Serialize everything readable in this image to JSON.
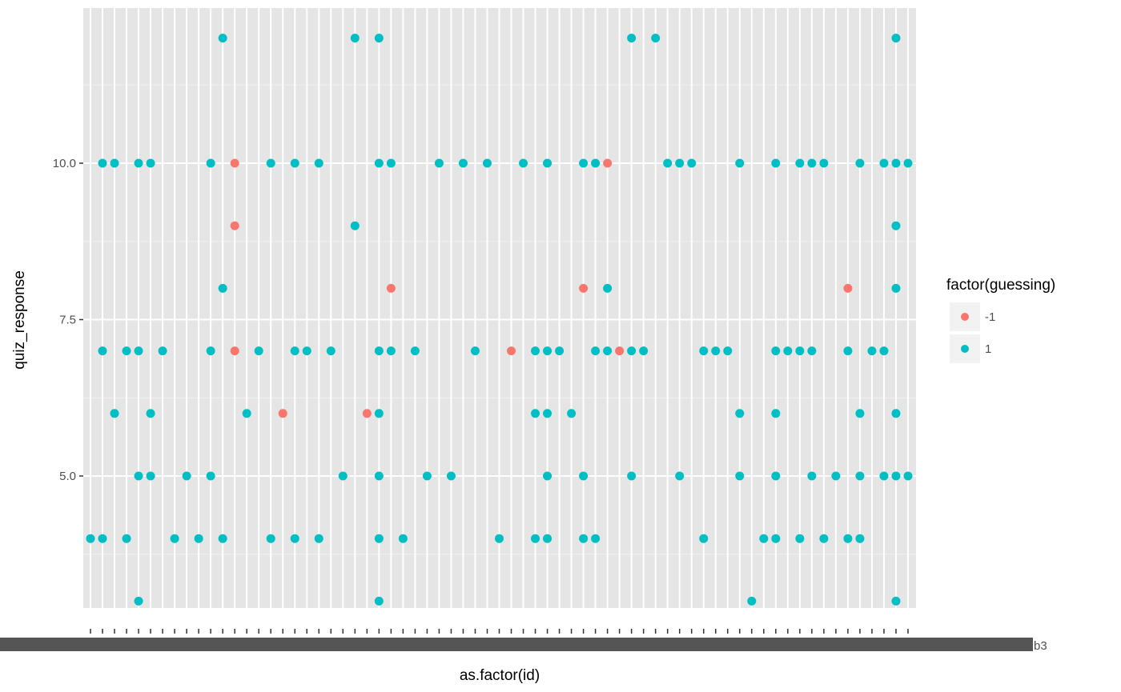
{
  "chart_data": {
    "type": "scatter",
    "xlabel": "as.factor(id)",
    "ylabel": "quiz_response",
    "ylim": [
      2.7,
      12.6
    ],
    "yticks": [
      5.0,
      7.5,
      10.0
    ],
    "ytick_labels": [
      "5.0",
      "7.5",
      "10.0"
    ],
    "x_categories_count": 68,
    "x_tick_labels_note": "68 overlapping category labels, illegible except trailing fragment",
    "x_tick_labels_visible": [
      "b3"
    ],
    "grid": true,
    "background": "#e5e5e5",
    "legend": {
      "title": "factor(guessing)",
      "placement": "right",
      "entries": [
        {
          "label": "-1",
          "color": "#f8766d"
        },
        {
          "label": "1",
          "color": "#00bfc4"
        }
      ]
    },
    "series": [
      {
        "name": "-1",
        "color": "#f8766d",
        "points": [
          [
            13,
            7
          ],
          [
            13,
            10
          ],
          [
            13,
            9
          ],
          [
            17,
            6
          ],
          [
            24,
            6
          ],
          [
            26,
            8
          ],
          [
            36,
            7
          ],
          [
            42,
            8
          ],
          [
            44,
            10
          ],
          [
            45,
            7
          ],
          [
            64,
            8
          ]
        ]
      },
      {
        "name": "1",
        "color": "#00bfc4",
        "points": [
          [
            1,
            4
          ],
          [
            2,
            10
          ],
          [
            2,
            7
          ],
          [
            2,
            4
          ],
          [
            3,
            10
          ],
          [
            3,
            6
          ],
          [
            4,
            7
          ],
          [
            4,
            4
          ],
          [
            5,
            10
          ],
          [
            5,
            7
          ],
          [
            5,
            5
          ],
          [
            5,
            3
          ],
          [
            6,
            10
          ],
          [
            6,
            6
          ],
          [
            6,
            5
          ],
          [
            7,
            7
          ],
          [
            8,
            4
          ],
          [
            9,
            5
          ],
          [
            10,
            4
          ],
          [
            11,
            10
          ],
          [
            11,
            7
          ],
          [
            11,
            5
          ],
          [
            12,
            12
          ],
          [
            12,
            8
          ],
          [
            12,
            4
          ],
          [
            14,
            6
          ],
          [
            15,
            7
          ],
          [
            16,
            10
          ],
          [
            16,
            4
          ],
          [
            18,
            10
          ],
          [
            18,
            7
          ],
          [
            18,
            4
          ],
          [
            19,
            7
          ],
          [
            20,
            10
          ],
          [
            20,
            4
          ],
          [
            21,
            7
          ],
          [
            22,
            5
          ],
          [
            23,
            12
          ],
          [
            23,
            9
          ],
          [
            25,
            12
          ],
          [
            25,
            10
          ],
          [
            25,
            7
          ],
          [
            25,
            6
          ],
          [
            25,
            5
          ],
          [
            25,
            4
          ],
          [
            25,
            3
          ],
          [
            26,
            10
          ],
          [
            26,
            7
          ],
          [
            27,
            4
          ],
          [
            28,
            7
          ],
          [
            29,
            5
          ],
          [
            30,
            10
          ],
          [
            31,
            5
          ],
          [
            32,
            10
          ],
          [
            33,
            7
          ],
          [
            34,
            10
          ],
          [
            35,
            4
          ],
          [
            37,
            10
          ],
          [
            38,
            7
          ],
          [
            38,
            6
          ],
          [
            38,
            4
          ],
          [
            39,
            10
          ],
          [
            39,
            7
          ],
          [
            39,
            6
          ],
          [
            39,
            5
          ],
          [
            39,
            4
          ],
          [
            40,
            7
          ],
          [
            41,
            6
          ],
          [
            42,
            10
          ],
          [
            42,
            5
          ],
          [
            42,
            4
          ],
          [
            43,
            10
          ],
          [
            43,
            7
          ],
          [
            43,
            4
          ],
          [
            44,
            7
          ],
          [
            44,
            8
          ],
          [
            46,
            12
          ],
          [
            46,
            7
          ],
          [
            46,
            5
          ],
          [
            47,
            7
          ],
          [
            48,
            12
          ],
          [
            49,
            10
          ],
          [
            50,
            10
          ],
          [
            50,
            5
          ],
          [
            51,
            10
          ],
          [
            52,
            7
          ],
          [
            52,
            4
          ],
          [
            53,
            7
          ],
          [
            54,
            7
          ],
          [
            55,
            10
          ],
          [
            55,
            6
          ],
          [
            55,
            5
          ],
          [
            56,
            3
          ],
          [
            57,
            4
          ],
          [
            58,
            10
          ],
          [
            58,
            7
          ],
          [
            58,
            6
          ],
          [
            58,
            5
          ],
          [
            58,
            4
          ],
          [
            59,
            7
          ],
          [
            60,
            10
          ],
          [
            60,
            7
          ],
          [
            60,
            4
          ],
          [
            61,
            10
          ],
          [
            61,
            7
          ],
          [
            61,
            5
          ],
          [
            62,
            10
          ],
          [
            62,
            4
          ],
          [
            63,
            5
          ],
          [
            64,
            7
          ],
          [
            64,
            4
          ],
          [
            65,
            10
          ],
          [
            65,
            6
          ],
          [
            65,
            5
          ],
          [
            65,
            4
          ],
          [
            66,
            7
          ],
          [
            67,
            10
          ],
          [
            67,
            7
          ],
          [
            67,
            5
          ],
          [
            68,
            12
          ],
          [
            68,
            10
          ],
          [
            68,
            9
          ],
          [
            68,
            8
          ],
          [
            68,
            6
          ],
          [
            68,
            5
          ],
          [
            68,
            3
          ],
          [
            69,
            10
          ],
          [
            69,
            5
          ]
        ]
      }
    ]
  }
}
